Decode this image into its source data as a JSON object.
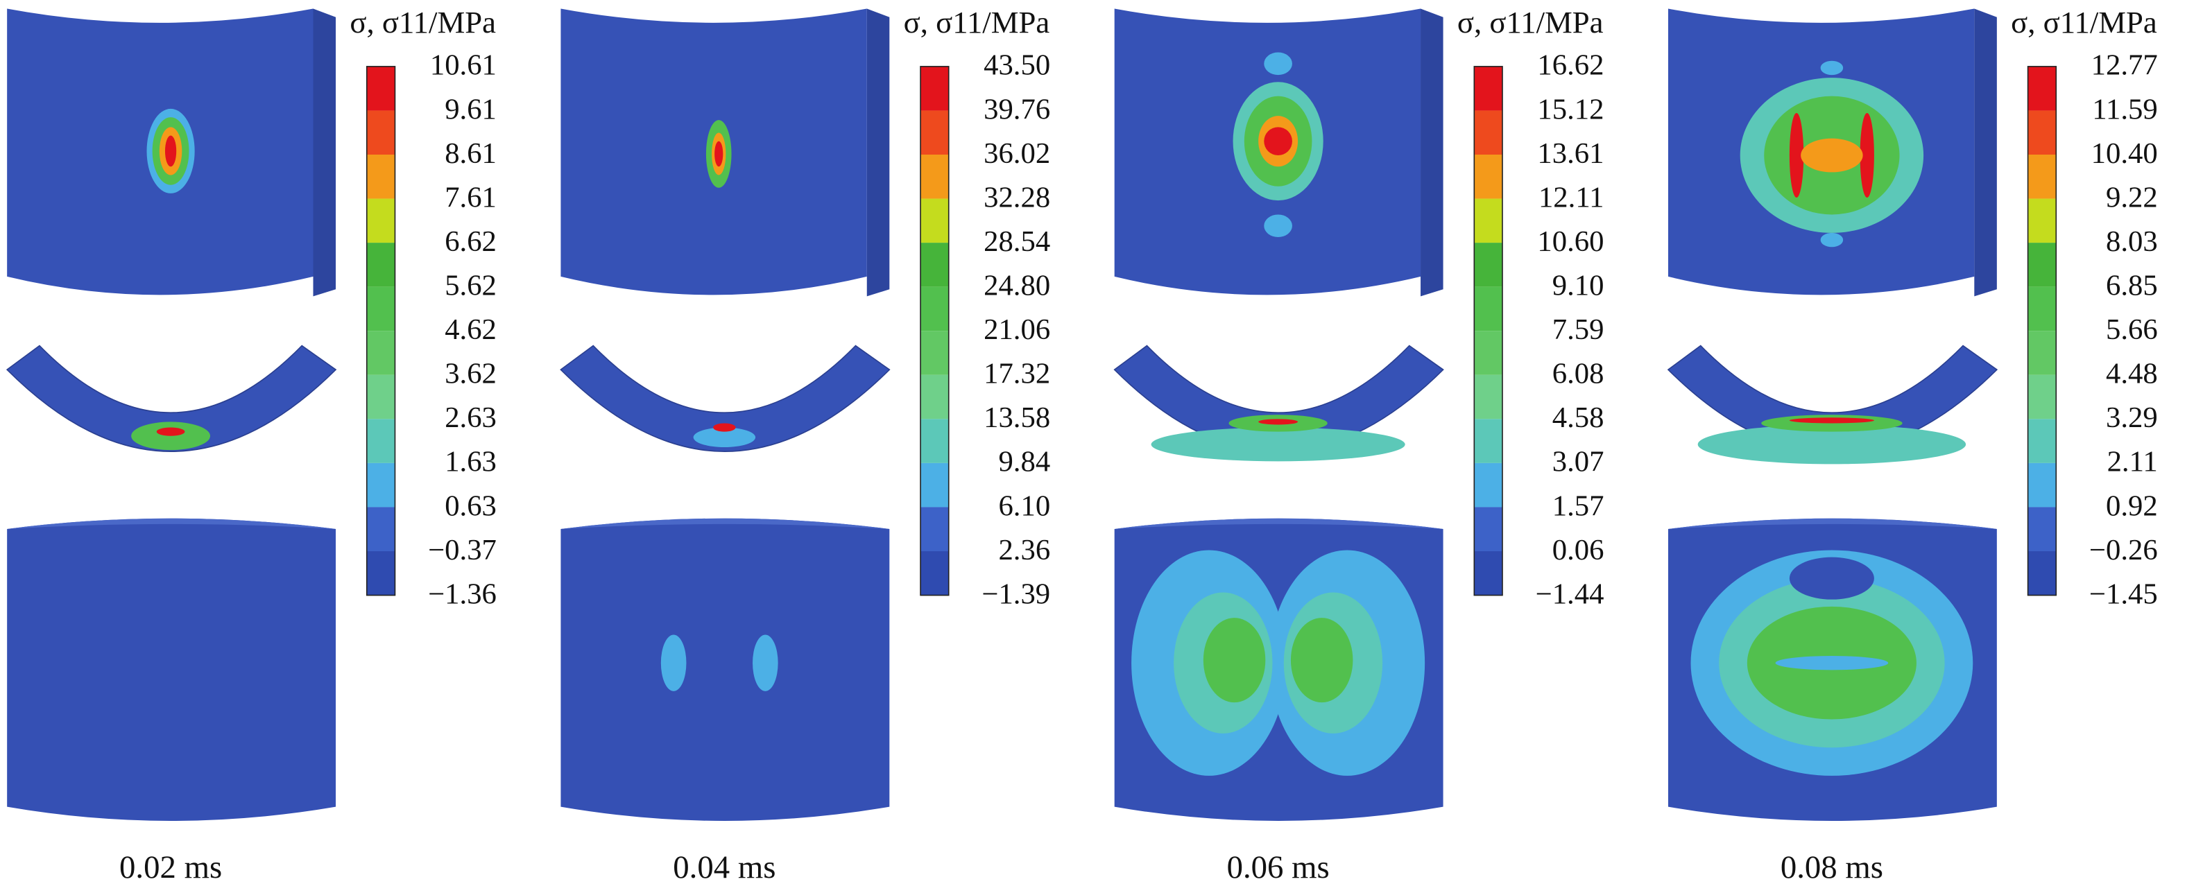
{
  "panels": [
    {
      "legend_title": "σ, σ11/MPa",
      "legend_values": [
        "10.61",
        "9.61",
        "8.61",
        "7.61",
        "6.62",
        "5.62",
        "4.62",
        "3.62",
        "2.63",
        "1.63",
        "0.63",
        "−0.37",
        "−1.36"
      ],
      "time": "0.02 ms"
    },
    {
      "legend_title": "σ, σ11/MPa",
      "legend_values": [
        "43.50",
        "39.76",
        "36.02",
        "32.28",
        "28.54",
        "24.80",
        "21.06",
        "17.32",
        "13.58",
        "9.84",
        "6.10",
        "2.36",
        "−1.39"
      ],
      "time": "0.04 ms"
    },
    {
      "legend_title": "σ, σ11/MPa",
      "legend_values": [
        "16.62",
        "15.12",
        "13.61",
        "12.11",
        "10.60",
        "9.10",
        "7.59",
        "6.08",
        "4.58",
        "3.07",
        "1.57",
        "0.06",
        "−1.44"
      ],
      "time": "0.06 ms"
    },
    {
      "legend_title": "σ, σ11/MPa",
      "legend_values": [
        "12.77",
        "11.59",
        "10.40",
        "9.22",
        "8.03",
        "6.85",
        "5.66",
        "4.48",
        "3.29",
        "2.11",
        "0.92",
        "−0.26",
        "−1.45"
      ],
      "time": "0.08 ms"
    }
  ]
}
